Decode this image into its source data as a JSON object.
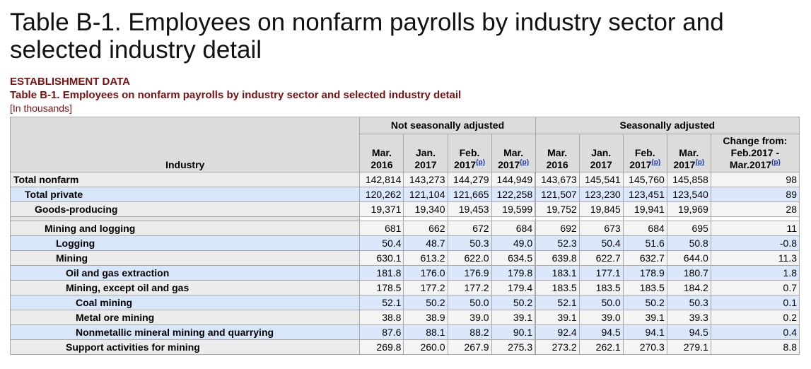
{
  "page_title": "Table B-1. Employees on nonfarm payrolls by industry sector and selected industry detail",
  "establishment_label": "ESTABLISHMENT DATA",
  "table_caption": "Table B-1. Employees on nonfarm payrolls by industry sector and selected industry detail",
  "units": "[In thousands]",
  "header": {
    "industry": "Industry",
    "group_nsa": "Not seasonally adjusted",
    "group_sa": "Seasonally adjusted",
    "columns": [
      {
        "line1": "Mar.",
        "line2": "2016",
        "prelim": ""
      },
      {
        "line1": "Jan.",
        "line2": "2017",
        "prelim": ""
      },
      {
        "line1": "Feb.",
        "line2": "2017",
        "prelim": "(p)"
      },
      {
        "line1": "Mar.",
        "line2": "2017",
        "prelim": "(p)"
      },
      {
        "line1": "Mar.",
        "line2": "2016",
        "prelim": ""
      },
      {
        "line1": "Jan.",
        "line2": "2017",
        "prelim": ""
      },
      {
        "line1": "Feb.",
        "line2": "2017",
        "prelim": "(p)"
      },
      {
        "line1": "Mar.",
        "line2": "2017",
        "prelim": "(p)"
      }
    ],
    "change_line1": "Change from:",
    "change_line2": "Feb.2017 -",
    "change_line3": "Mar.2017",
    "change_prelim": "(p)"
  },
  "rows": [
    {
      "label": "Total nonfarm",
      "values": [
        "142,814",
        "143,273",
        "144,279",
        "144,949",
        "143,673",
        "145,541",
        "145,760",
        "145,858",
        "98"
      ]
    },
    {
      "label": "Total private",
      "values": [
        "120,262",
        "121,104",
        "121,665",
        "122,258",
        "121,507",
        "123,230",
        "123,451",
        "123,540",
        "89"
      ]
    },
    {
      "label": "Goods-producing",
      "values": [
        "19,371",
        "19,340",
        "19,453",
        "19,599",
        "19,752",
        "19,845",
        "19,941",
        "19,969",
        "28"
      ]
    },
    {
      "label": "Mining and logging",
      "values": [
        "681",
        "662",
        "672",
        "684",
        "692",
        "673",
        "684",
        "695",
        "11"
      ]
    },
    {
      "label": "Logging",
      "values": [
        "50.4",
        "48.7",
        "50.3",
        "49.0",
        "52.3",
        "50.4",
        "51.6",
        "50.8",
        "-0.8"
      ]
    },
    {
      "label": "Mining",
      "values": [
        "630.1",
        "613.2",
        "622.0",
        "634.5",
        "639.8",
        "622.7",
        "632.7",
        "644.0",
        "11.3"
      ]
    },
    {
      "label": "Oil and gas extraction",
      "values": [
        "181.8",
        "176.0",
        "176.9",
        "179.8",
        "183.1",
        "177.1",
        "178.9",
        "180.7",
        "1.8"
      ]
    },
    {
      "label": "Mining, except oil and gas",
      "values": [
        "178.5",
        "177.2",
        "177.2",
        "179.4",
        "183.5",
        "183.5",
        "183.5",
        "184.2",
        "0.7"
      ]
    },
    {
      "label": "Coal mining",
      "values": [
        "52.1",
        "50.2",
        "50.0",
        "50.2",
        "52.1",
        "50.0",
        "50.2",
        "50.3",
        "0.1"
      ]
    },
    {
      "label": "Metal ore mining",
      "values": [
        "38.8",
        "38.9",
        "39.0",
        "39.1",
        "39.1",
        "39.0",
        "39.1",
        "39.3",
        "0.2"
      ]
    },
    {
      "label": "Nonmetallic mineral mining and quarrying",
      "values": [
        "87.6",
        "88.1",
        "88.2",
        "90.1",
        "92.4",
        "94.5",
        "94.1",
        "94.5",
        "0.4"
      ]
    },
    {
      "label": "Support activities for mining",
      "values": [
        "269.8",
        "260.0",
        "267.9",
        "275.3",
        "273.2",
        "262.1",
        "270.3",
        "279.1",
        "8.8"
      ]
    }
  ]
}
